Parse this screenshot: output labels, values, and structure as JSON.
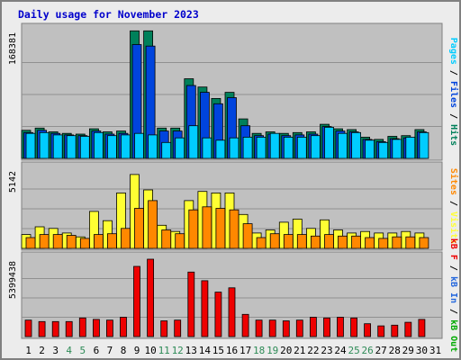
{
  "title": "Daily usage for November 2023",
  "colors": {
    "page_bg": "#ececec",
    "frame": "#808080",
    "panel_bg": "#c0c0c0",
    "grid": "#909090",
    "title_text": "#0000cc",
    "weekday_label": "#000000",
    "weekend_label": "#2e8b57",
    "separator": "#000000"
  },
  "chart_data": [
    {
      "type": "bar",
      "panel": "top",
      "ymax_label": "168381",
      "ylim": [
        0,
        168381
      ],
      "grid": true,
      "categories": [
        "1",
        "2",
        "3",
        "4",
        "5",
        "6",
        "7",
        "8",
        "9",
        "10",
        "11",
        "12",
        "13",
        "14",
        "15",
        "16",
        "17",
        "18",
        "19",
        "20",
        "21",
        "22",
        "23",
        "24",
        "25",
        "26",
        "27",
        "28",
        "29",
        "30",
        "31"
      ],
      "series": [
        {
          "name": "Hits",
          "color": "#00805a",
          "values": [
            37000,
            40000,
            35000,
            33000,
            32000,
            39000,
            35000,
            36000,
            168000,
            168000,
            40000,
            40000,
            105000,
            94000,
            79000,
            87000,
            52000,
            33000,
            35000,
            33000,
            34000,
            35000,
            45000,
            39000,
            38000,
            28000,
            25000,
            29000,
            30000,
            38000,
            0
          ]
        },
        {
          "name": "Files",
          "color": "#0044dd",
          "values": [
            34000,
            37000,
            33000,
            31000,
            30000,
            36000,
            32000,
            33000,
            150000,
            148000,
            36000,
            36000,
            96000,
            87000,
            72000,
            80000,
            43000,
            30000,
            32000,
            30000,
            31000,
            32000,
            42000,
            36000,
            35000,
            25000,
            22000,
            26000,
            27000,
            35000,
            0
          ]
        },
        {
          "name": "Pages",
          "color": "#00ccff",
          "values": [
            33000,
            34000,
            31000,
            30000,
            29000,
            34000,
            30000,
            31000,
            33000,
            31000,
            21000,
            27000,
            43000,
            27000,
            24000,
            27000,
            28000,
            28000,
            33000,
            28000,
            28000,
            30000,
            41000,
            33000,
            34000,
            24000,
            21000,
            25000,
            28000,
            34000,
            0
          ]
        }
      ],
      "side_label": [
        {
          "text": "Pages",
          "color": "#00ccff"
        },
        {
          "text": " / ",
          "color": "#000000"
        },
        {
          "text": "Files",
          "color": "#0044dd"
        },
        {
          "text": " / ",
          "color": "#000000"
        },
        {
          "text": "Hits",
          "color": "#00805a"
        }
      ]
    },
    {
      "type": "bar",
      "panel": "middle",
      "ymax_label": "5142",
      "ylim": [
        0,
        5142
      ],
      "grid": true,
      "categories": [
        "1",
        "2",
        "3",
        "4",
        "5",
        "6",
        "7",
        "8",
        "9",
        "10",
        "11",
        "12",
        "13",
        "14",
        "15",
        "16",
        "17",
        "18",
        "19",
        "20",
        "21",
        "22",
        "23",
        "24",
        "25",
        "26",
        "27",
        "28",
        "29",
        "30",
        "31"
      ],
      "series": [
        {
          "name": "Visits",
          "color": "#ffff33",
          "values": [
            900,
            1400,
            1300,
            1000,
            750,
            2400,
            1800,
            3600,
            4800,
            3800,
            1500,
            1100,
            3100,
            3700,
            3600,
            3600,
            2200,
            1000,
            1200,
            1700,
            1900,
            1300,
            1850,
            1200,
            1000,
            1100,
            1000,
            1000,
            1100,
            1000,
            0
          ]
        },
        {
          "name": "Sites",
          "color": "#ff8800",
          "values": [
            700,
            900,
            900,
            850,
            650,
            900,
            950,
            1300,
            2600,
            3100,
            1200,
            950,
            2500,
            2700,
            2600,
            2500,
            1600,
            700,
            950,
            900,
            900,
            800,
            900,
            800,
            800,
            700,
            650,
            750,
            750,
            700,
            0
          ]
        }
      ],
      "side_label": [
        {
          "text": "Sites",
          "color": "#ff8800"
        },
        {
          "text": " / ",
          "color": "#000000"
        },
        {
          "text": "Visits",
          "color": "#ffff33"
        }
      ]
    },
    {
      "type": "bar",
      "panel": "bottom",
      "ymax_label": "5399438",
      "ylim": [
        0,
        5399438
      ],
      "grid": true,
      "categories": [
        "1",
        "2",
        "3",
        "4",
        "5",
        "6",
        "7",
        "8",
        "9",
        "10",
        "11",
        "12",
        "13",
        "14",
        "15",
        "16",
        "17",
        "18",
        "19",
        "20",
        "21",
        "22",
        "23",
        "24",
        "25",
        "26",
        "27",
        "28",
        "29",
        "30",
        "31"
      ],
      "series": [
        {
          "name": "kB F",
          "color": "#ee0000",
          "values": [
            1150000,
            1050000,
            1050000,
            1050000,
            1300000,
            1200000,
            1150000,
            1350000,
            4900000,
            5400000,
            1100000,
            1150000,
            4500000,
            3900000,
            3100000,
            3400000,
            1550000,
            1150000,
            1150000,
            1100000,
            1150000,
            1350000,
            1300000,
            1350000,
            1300000,
            900000,
            750000,
            800000,
            1000000,
            1200000,
            0
          ]
        }
      ],
      "side_label": [
        {
          "text": "kB F",
          "color": "#ee0000"
        },
        {
          "text": " / ",
          "color": "#000000"
        },
        {
          "text": "kB In",
          "color": "#2266dd"
        },
        {
          "text": " / ",
          "color": "#000000"
        },
        {
          "text": "kB Out",
          "color": "#00aa00"
        }
      ]
    }
  ],
  "x_axis": {
    "labels": [
      "1",
      "2",
      "3",
      "4",
      "5",
      "6",
      "7",
      "8",
      "9",
      "10",
      "11",
      "12",
      "13",
      "14",
      "15",
      "16",
      "17",
      "18",
      "19",
      "20",
      "21",
      "22",
      "23",
      "24",
      "25",
      "26",
      "27",
      "28",
      "29",
      "30",
      "31"
    ],
    "weekend_days": [
      "4",
      "5",
      "11",
      "12",
      "18",
      "19",
      "25",
      "26"
    ]
  }
}
